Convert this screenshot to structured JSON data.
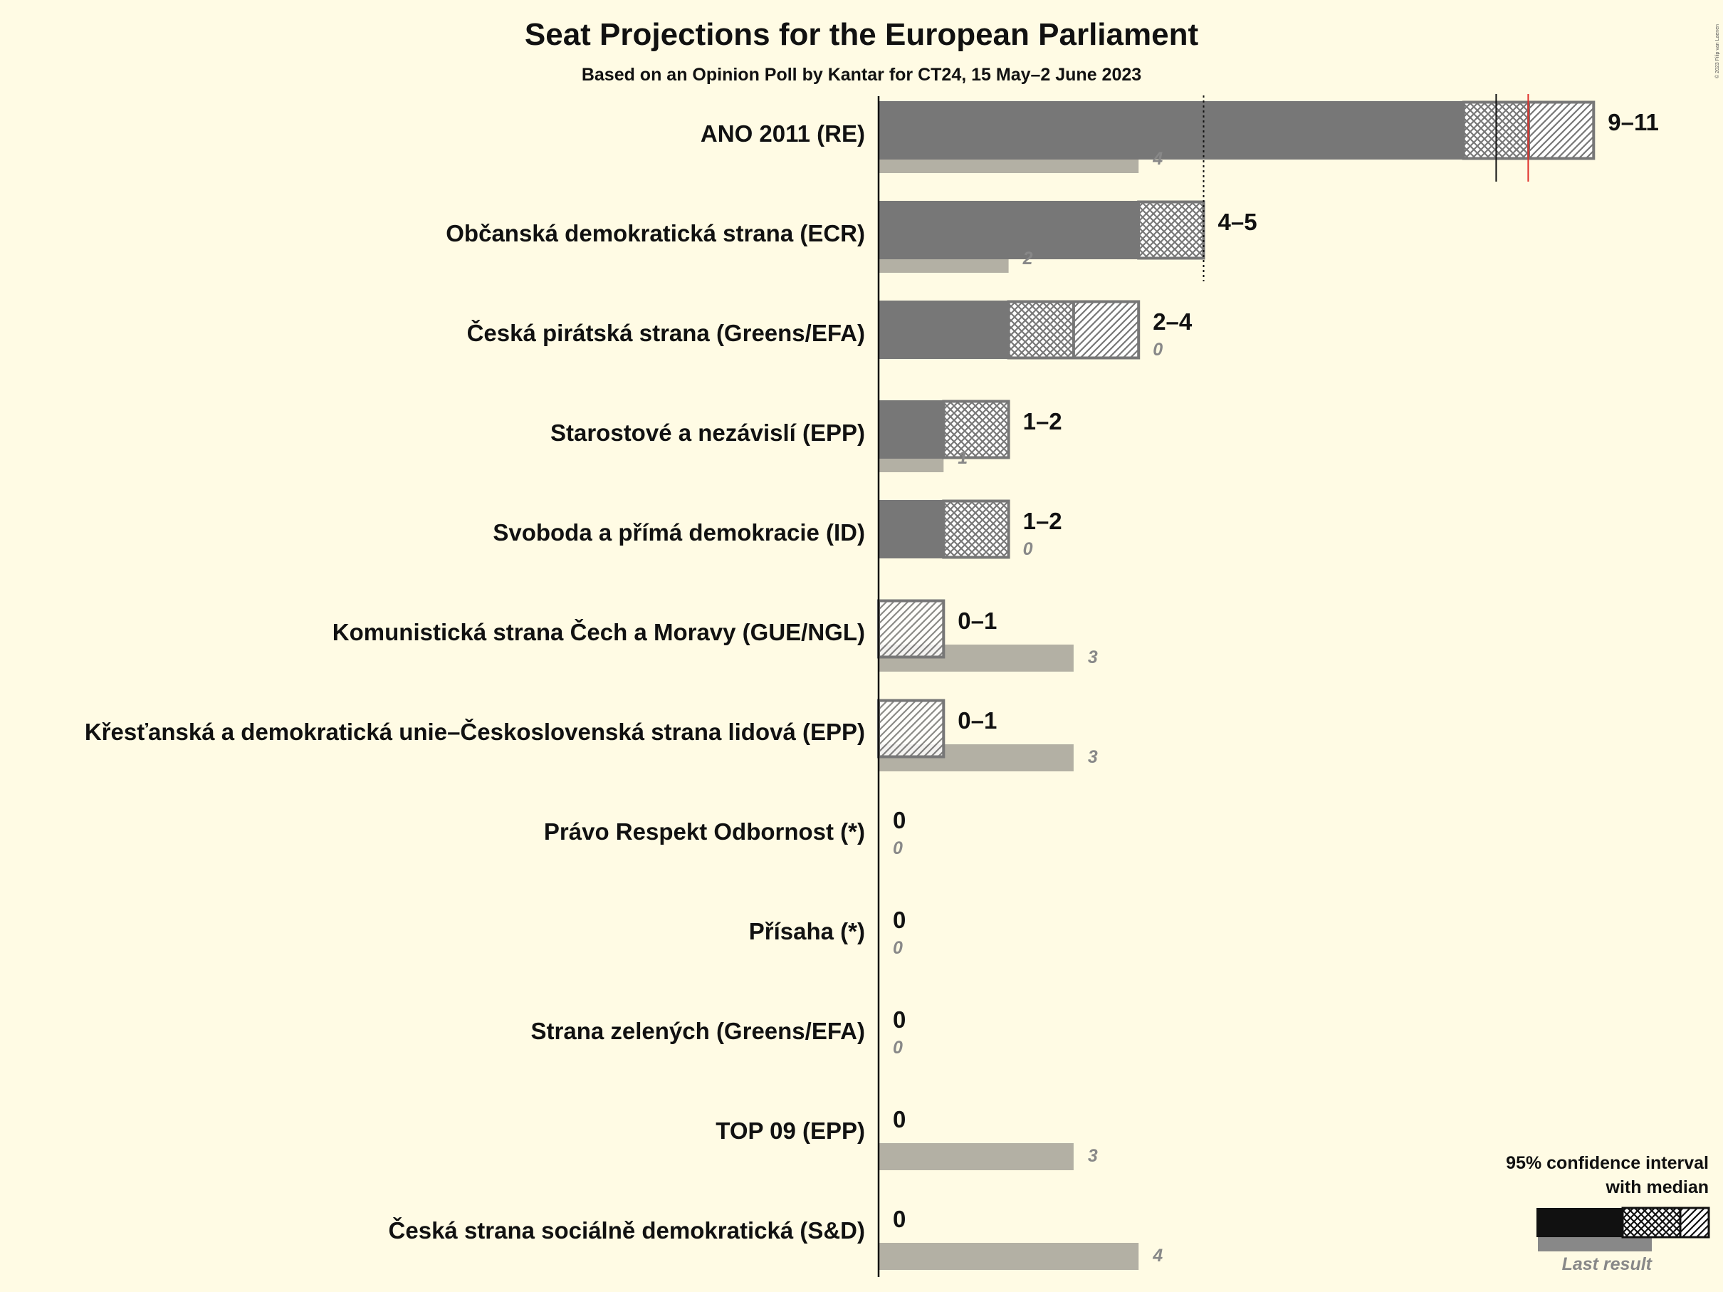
{
  "title": "Seat Projections for the European Parliament",
  "subtitle": "Based on an Opinion Poll by Kantar for CT24, 15 May–2 June 2023",
  "copyright": "© 2023 Filip van Laenen",
  "legend": {
    "line1": "95% confidence interval",
    "line2": "with median",
    "last_result": "Last result"
  },
  "colors": {
    "background": "#fffbe4",
    "bar": "#777777",
    "last_result": "#b3b0a4",
    "legend_bar": "#111111",
    "majority_line": "#e0302a"
  },
  "chart_data": {
    "type": "bar",
    "orientation": "horizontal",
    "unit": "seats",
    "median_marker_seats": 10,
    "dotted_reference_seats": 5,
    "parties": [
      {
        "name": "ANO 2011 (RE)",
        "low": 9,
        "median": 10,
        "high": 11,
        "range_label": "9–11",
        "last": 4,
        "last_label": "4"
      },
      {
        "name": "Občanská demokratická strana (ECR)",
        "low": 4,
        "median": 5,
        "high": 5,
        "range_label": "4–5",
        "last": 2,
        "last_label": "2"
      },
      {
        "name": "Česká pirátská strana (Greens/EFA)",
        "low": 2,
        "median": 3,
        "high": 4,
        "range_label": "2–4",
        "last": 0,
        "last_label": "0"
      },
      {
        "name": "Starostové a nezávislí (EPP)",
        "low": 1,
        "median": 2,
        "high": 2,
        "range_label": "1–2",
        "last": 1,
        "last_label": "1"
      },
      {
        "name": "Svoboda a přímá demokracie (ID)",
        "low": 1,
        "median": 2,
        "high": 2,
        "range_label": "1–2",
        "last": 0,
        "last_label": "0"
      },
      {
        "name": "Komunistická strana Čech a Moravy (GUE/NGL)",
        "low": 0,
        "median": 0,
        "high": 1,
        "range_label": "0–1",
        "last": 3,
        "last_label": "3"
      },
      {
        "name": "Křesťanská a demokratická unie–Československá strana lidová (EPP)",
        "low": 0,
        "median": 0,
        "high": 1,
        "range_label": "0–1",
        "last": 3,
        "last_label": "3"
      },
      {
        "name": "Právo Respekt Odbornost (*)",
        "low": 0,
        "median": 0,
        "high": 0,
        "range_label": "0",
        "last": 0,
        "last_label": "0"
      },
      {
        "name": "Přísaha (*)",
        "low": 0,
        "median": 0,
        "high": 0,
        "range_label": "0",
        "last": 0,
        "last_label": "0"
      },
      {
        "name": "Strana zelených (Greens/EFA)",
        "low": 0,
        "median": 0,
        "high": 0,
        "range_label": "0",
        "last": 0,
        "last_label": "0"
      },
      {
        "name": "TOP 09 (EPP)",
        "low": 0,
        "median": 0,
        "high": 0,
        "range_label": "0",
        "last": 3,
        "last_label": "3"
      },
      {
        "name": "Česká strana sociálně demokratická (S&D)",
        "low": 0,
        "median": 0,
        "high": 0,
        "range_label": "0",
        "last": 4,
        "last_label": "4"
      }
    ]
  }
}
